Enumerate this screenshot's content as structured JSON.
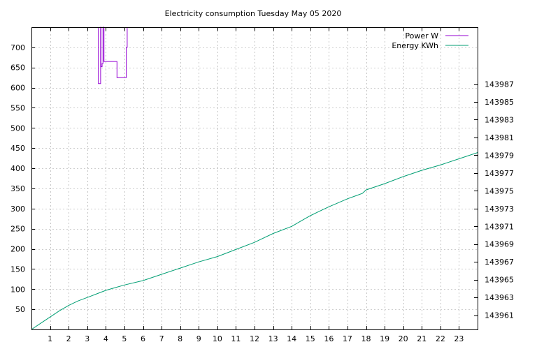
{
  "chart_data": {
    "type": "line",
    "title": "Electricity consumption Tuesday May 05 2020",
    "xlabel": "",
    "ylabel": "",
    "y2label": "",
    "x_ticks": [
      1,
      2,
      3,
      4,
      5,
      6,
      7,
      8,
      9,
      10,
      11,
      12,
      13,
      14,
      15,
      16,
      17,
      18,
      19,
      20,
      21,
      22,
      23
    ],
    "xlim": [
      0,
      24
    ],
    "ylim": [
      0,
      750
    ],
    "y_ticks": [
      50,
      100,
      150,
      200,
      250,
      300,
      350,
      400,
      450,
      500,
      550,
      600,
      650,
      700
    ],
    "y2lim": [
      143959.4,
      143993.4
    ],
    "y2_ticks": [
      143961,
      143963,
      143965,
      143967,
      143969,
      143971,
      143973,
      143975,
      143977,
      143979,
      143981,
      143983,
      143985,
      143987
    ],
    "grid": true,
    "legend_position": "top-right",
    "series": [
      {
        "name": "Power W",
        "axis": "y1",
        "color": "#9400d3",
        "step": true,
        "points": [
          [
            3.6,
            750
          ],
          [
            3.6,
            610
          ],
          [
            3.72,
            610
          ],
          [
            3.72,
            750
          ],
          [
            3.74,
            750
          ],
          [
            3.74,
            652
          ],
          [
            3.8,
            652
          ],
          [
            3.8,
            660
          ],
          [
            3.85,
            660
          ],
          [
            3.85,
            750
          ],
          [
            3.9,
            750
          ],
          [
            3.9,
            665
          ],
          [
            4.6,
            665
          ],
          [
            4.6,
            625
          ],
          [
            5.1,
            625
          ],
          [
            5.1,
            700
          ],
          [
            5.15,
            700
          ],
          [
            5.15,
            750
          ]
        ]
      },
      {
        "name": "Energy KWh",
        "axis": "y2",
        "color": "#009e73",
        "step": false,
        "points": [
          [
            0.0,
            143959.4
          ],
          [
            0.5,
            143960.1
          ],
          [
            1.0,
            143960.8
          ],
          [
            1.5,
            143961.5
          ],
          [
            2.0,
            143962.1
          ],
          [
            2.5,
            143962.6
          ],
          [
            3.0,
            143963.0
          ],
          [
            3.5,
            143963.4
          ],
          [
            4.0,
            143963.8
          ],
          [
            4.5,
            143964.1
          ],
          [
            5.0,
            143964.4
          ],
          [
            6.0,
            143964.9
          ],
          [
            7.0,
            143965.6
          ],
          [
            8.0,
            143966.3
          ],
          [
            9.0,
            143967.0
          ],
          [
            10.0,
            143967.6
          ],
          [
            11.0,
            143968.4
          ],
          [
            12.0,
            143969.2
          ],
          [
            13.0,
            143970.2
          ],
          [
            14.0,
            143971.0
          ],
          [
            14.5,
            143971.6
          ],
          [
            15.0,
            143972.2
          ],
          [
            15.5,
            143972.7
          ],
          [
            16.0,
            143973.2
          ],
          [
            17.0,
            143974.1
          ],
          [
            17.8,
            143974.7
          ],
          [
            18.0,
            143975.1
          ],
          [
            19.0,
            143975.8
          ],
          [
            20.0,
            143976.6
          ],
          [
            21.0,
            143977.3
          ],
          [
            22.0,
            143977.9
          ],
          [
            23.0,
            143978.6
          ],
          [
            24.0,
            143979.3
          ]
        ]
      }
    ]
  }
}
